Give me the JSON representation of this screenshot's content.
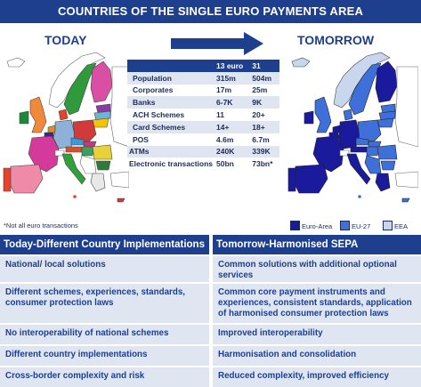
{
  "title": "COUNTRIES OF THE SINGLE EURO PAYMENTS AREA",
  "today_label": "TODAY",
  "tomorrow_label": "TOMORROW",
  "stats": {
    "header": [
      "",
      "13 euro",
      "31"
    ],
    "rows": [
      {
        "label": "Population",
        "today": "315m",
        "tomorrow": "504m",
        "indent": true
      },
      {
        "label": "Corporates",
        "today": "17m",
        "tomorrow": "25m",
        "indent": true
      },
      {
        "label": "Banks",
        "today": "6-7K",
        "tomorrow": "9K",
        "indent": true
      },
      {
        "label": "ACH Schemes",
        "today": "11",
        "tomorrow": "20+",
        "indent": true
      },
      {
        "label": "Card Schemes",
        "today": "14+",
        "tomorrow": "18+",
        "indent": true
      },
      {
        "label": "POS",
        "today": "4.6m",
        "tomorrow": "6.7m",
        "indent": true
      },
      {
        "label": "ATMs",
        "today": "240K",
        "tomorrow": "339K",
        "indent": false
      },
      {
        "label": "Electronic transactions",
        "today": "50bn",
        "tomorrow": "73bn*",
        "indent": false
      }
    ]
  },
  "footnote": "*Not all euro transactions",
  "legend": [
    {
      "label": "Euro-Area",
      "color": "#1a1a9c"
    },
    {
      "label": "EU-27",
      "color": "#3f6fd8"
    },
    {
      "label": "EEA",
      "color": "#c8d7ee"
    }
  ],
  "comparison": {
    "left_header": "Today-Different Country Implementations",
    "right_header": "Tomorrow-Harmonised SEPA",
    "rows": [
      {
        "today": "National/ local solutions",
        "tomorrow": "Common solutions with additional optional services"
      },
      {
        "today": "Different schemes, experiences, standards, consumer protection laws",
        "tomorrow": "Common core payment instruments and experiences, consistent standards, application of harmonised consumer protection laws"
      },
      {
        "today": "No interoperability of national schemes",
        "tomorrow": "Improved interoperability"
      },
      {
        "today": "Different country implementations",
        "tomorrow": "Harmonisation and consolidation"
      },
      {
        "today": "Cross-border complexity and risk",
        "tomorrow": "Reduced complexity, improved efficiency"
      }
    ]
  },
  "colors": {
    "navy": "#1d3f8e",
    "light_row": "#dfe5f1",
    "map_bg": "#ffffff"
  }
}
